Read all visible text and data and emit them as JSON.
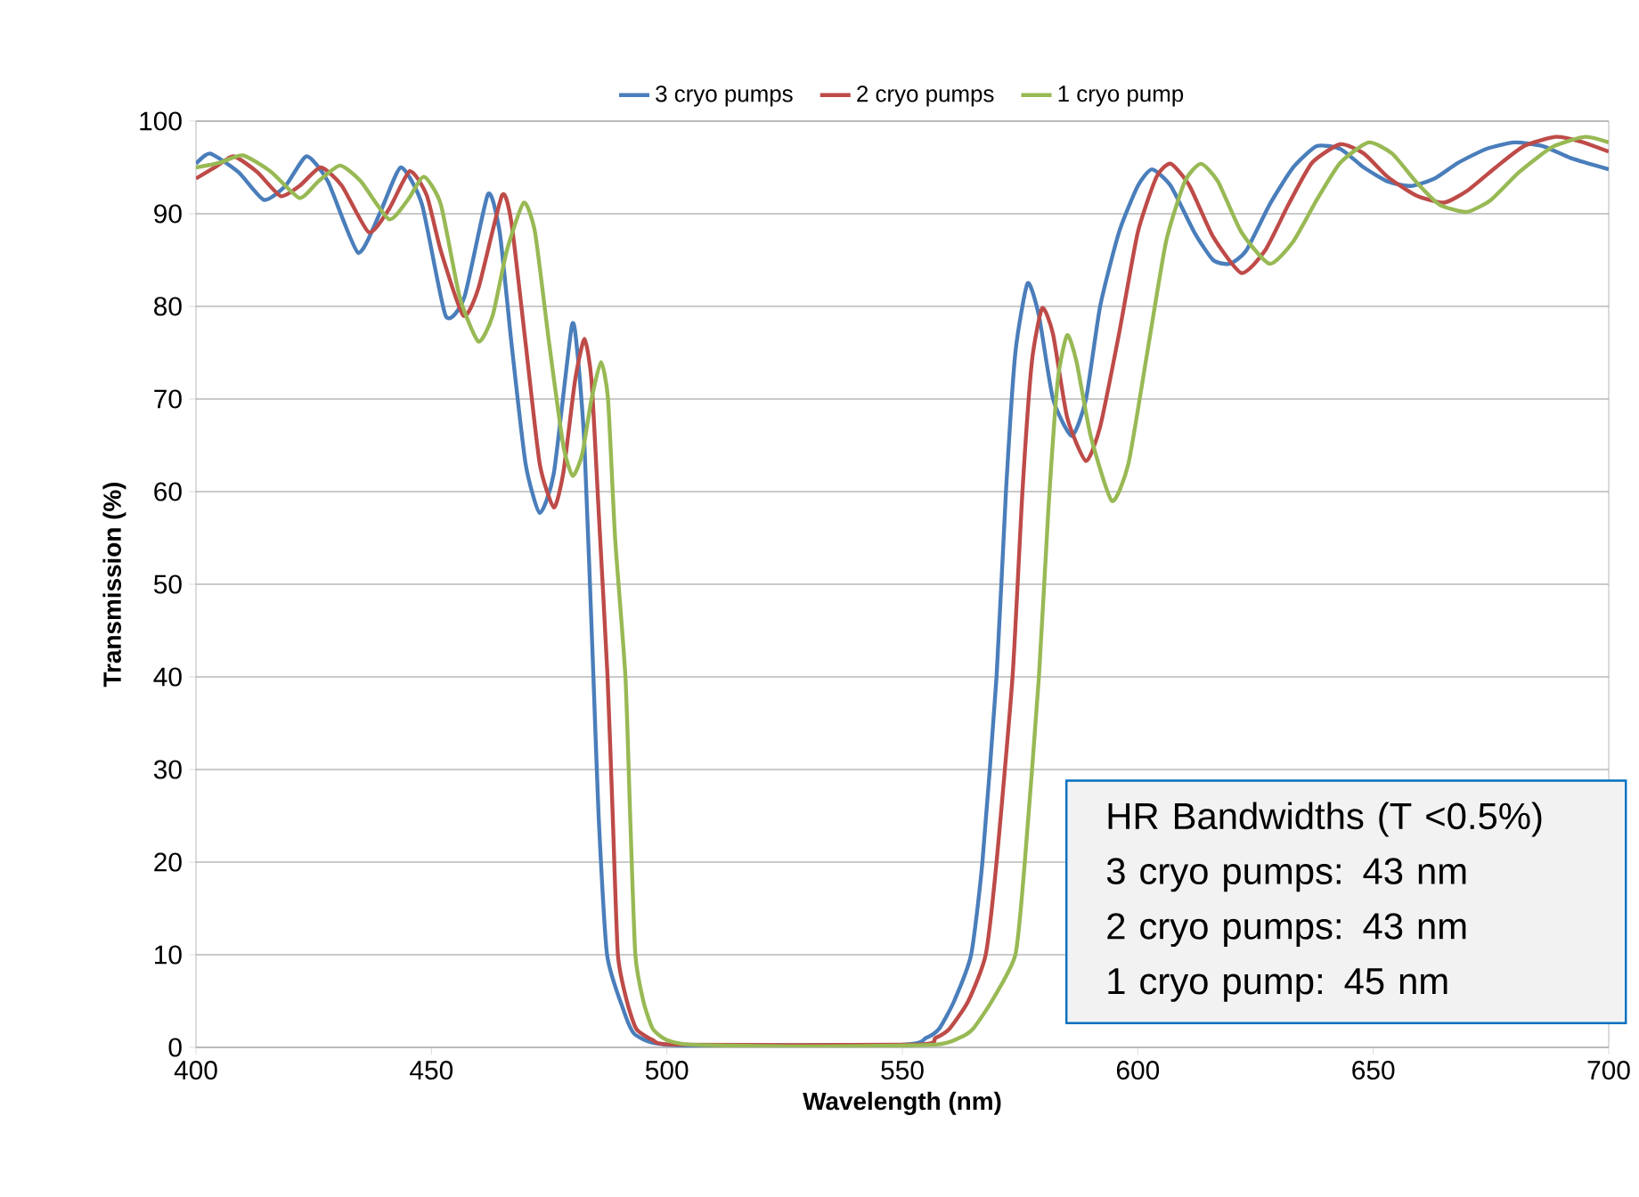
{
  "chart_data": {
    "type": "line",
    "xlabel": "Wavelength (nm)",
    "ylabel": "Transmission (%)",
    "xlim": [
      400,
      700
    ],
    "xticks": [
      400,
      450,
      500,
      550,
      600,
      650,
      700
    ],
    "ylim": [
      0,
      100
    ],
    "yticks": [
      0,
      10,
      20,
      30,
      40,
      50,
      60,
      70,
      80,
      90,
      100
    ],
    "grid": "y",
    "legend": "top",
    "annotations": [
      "HR Bandwidths (T <0.5%)",
      "3 cryo pumps: 43 nm",
      "2 cryo pumps: 43 nm",
      "1 cryo pump: 45 nm"
    ],
    "series": [
      {
        "name": "3 cryo pumps",
        "color": "#4a7ebb",
        "x": [
          400,
          403,
          409,
          414.4,
          419,
          423.5,
          428,
          434.4,
          439,
          443.5,
          448,
          453,
          457,
          462,
          464.5,
          467,
          470,
          473,
          476,
          479.8,
          481,
          482.5,
          484.4,
          485.5,
          487.3,
          490.8,
          493,
          497,
          505,
          530,
          550,
          555,
          557.8,
          561,
          564.6,
          567,
          570,
          572,
          574,
          576.6,
          579,
          582,
          586,
          589,
          592,
          596,
          600,
          603,
          607,
          612,
          616,
          619.5,
          623,
          628,
          633,
          638,
          643,
          648,
          653,
          658,
          663,
          668,
          674,
          680,
          686,
          692,
          700
        ],
        "values": [
          95.4,
          96.5,
          94.5,
          91.5,
          93,
          96.2,
          93.5,
          85.8,
          90,
          95,
          91,
          79,
          81,
          92.1,
          88,
          76,
          63,
          57.7,
          62,
          77.9,
          75,
          65,
          40,
          25,
          10,
          4,
          1.5,
          0.5,
          0.2,
          null,
          0.3,
          1,
          2,
          5,
          10,
          20,
          40,
          60,
          75,
          82.5,
          79,
          70,
          66,
          70,
          80,
          88,
          93,
          94.8,
          93,
          88,
          85,
          84.6,
          86,
          91,
          95,
          97.3,
          97,
          95,
          93.5,
          93,
          93.8,
          95.5,
          97,
          97.7,
          97.3,
          96,
          94.8
        ]
      },
      {
        "name": "2 cryo pumps",
        "color": "#be4b48",
        "x": [
          400,
          404,
          408,
          413,
          418,
          422,
          426.5,
          431,
          436.7,
          441,
          445.4,
          449,
          452,
          456.8,
          460,
          465,
          467,
          470,
          473,
          476,
          478,
          480.5,
          482.5,
          484,
          485.5,
          487.4,
          488.5,
          489.6,
          491.5,
          493.5,
          497,
          502,
          530,
          553,
          557,
          560,
          564,
          567.7,
          570,
          573.4,
          575.5,
          577.5,
          579.7,
          582,
          585,
          589,
          592,
          596,
          600,
          604,
          607,
          611,
          616,
          622,
          627,
          632,
          637,
          643,
          648,
          653,
          659,
          665,
          670,
          676,
          682,
          688.7,
          694,
          700
        ],
        "values": [
          93.8,
          95,
          96.2,
          94.5,
          91.9,
          93,
          95,
          93,
          88,
          90.5,
          94.6,
          92,
          86,
          79,
          82,
          92,
          89,
          76,
          63,
          58.3,
          62,
          72,
          76.5,
          72,
          58,
          40,
          25,
          10,
          5,
          2,
          0.8,
          0.3,
          null,
          0.3,
          1,
          2,
          5,
          10,
          20,
          40,
          60,
          74,
          79.8,
          77,
          68,
          63.3,
          67,
          77,
          88,
          94,
          95.4,
          93,
          87.5,
          83.6,
          86,
          91,
          95.5,
          97.5,
          96.5,
          94,
          92,
          91.2,
          92.5,
          95,
          97.3,
          98.3,
          97.8,
          96.7
        ]
      },
      {
        "name": "1 cryo pump",
        "color": "#98b954",
        "x": [
          400,
          405,
          410,
          416,
          422,
          426,
          430.6,
          435,
          441,
          445,
          448.4,
          452,
          456,
          460,
          463,
          466,
          469.6,
          472,
          475,
          478,
          480,
          482,
          484,
          486,
          487.5,
          489,
          491.2,
          492.2,
          493.3,
          495,
          497,
          500,
          505,
          530,
          557,
          562,
          565,
          569,
          574,
          576,
          579,
          581,
          583,
          585,
          587,
          590,
          594.5,
          598,
          602,
          606,
          610,
          613.4,
          617,
          622,
          628,
          633,
          638,
          643,
          649,
          654,
          659,
          664,
          669.8,
          675,
          681,
          688,
          695,
          700
        ],
        "values": [
          95,
          95.5,
          96.3,
          94.5,
          91.7,
          93.5,
          95.2,
          93.5,
          89.4,
          91.5,
          94,
          91,
          81,
          76.2,
          79,
          86,
          91.2,
          88,
          76,
          65,
          61.7,
          64,
          70,
          74,
          70,
          55,
          40,
          25,
          10,
          5,
          2,
          0.8,
          0.3,
          0.1,
          0.3,
          1,
          2,
          5,
          10,
          20,
          40,
          58,
          72,
          76.9,
          74,
          66,
          59,
          63,
          75,
          87,
          93.5,
          95.4,
          93.5,
          88,
          84.6,
          87,
          91.5,
          95.5,
          97.7,
          96.5,
          93.5,
          91,
          90.2,
          91.5,
          94.5,
          97.2,
          98.3,
          97.7
        ]
      }
    ]
  }
}
